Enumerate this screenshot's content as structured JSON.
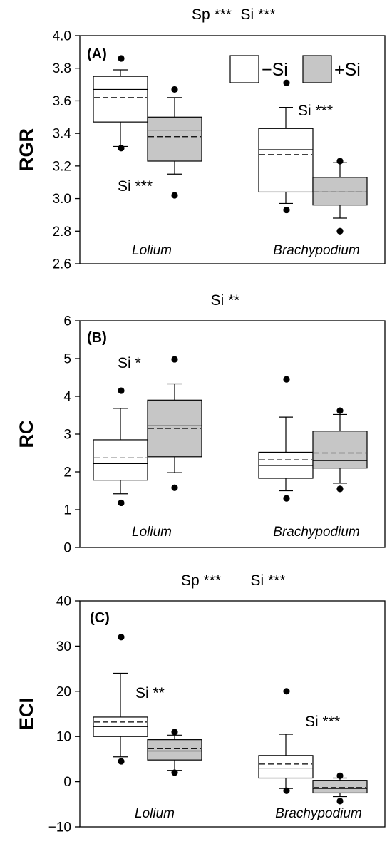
{
  "colors": {
    "minus_si": "#ffffff",
    "plus_si": "#c6c6c6",
    "outline": "#000000"
  },
  "legend": {
    "minus_label": "−Si",
    "plus_label": "+Si"
  },
  "chart_data": [
    {
      "type": "box",
      "panel_label": "(A)",
      "ylabel": "RGR",
      "ylim": [
        2.6,
        4.0
      ],
      "yticks": [
        "2.6",
        "2.8",
        "3.0",
        "3.2",
        "3.4",
        "3.6",
        "3.8",
        "4.0"
      ],
      "top_text": [
        "Sp ***",
        "Si ***"
      ],
      "categories": [
        "Lolium",
        "Brachypodium"
      ],
      "annotations": [
        "Si ***",
        "Si ***"
      ],
      "series": [
        {
          "group": "−Si",
          "boxes": [
            {
              "q1": 3.47,
              "median": 3.67,
              "q3": 3.75,
              "mean": 3.62,
              "wlow": 3.32,
              "whigh": 3.79,
              "outliers": [
                3.86,
                3.31
              ]
            },
            {
              "q1": 3.04,
              "median": 3.3,
              "q3": 3.43,
              "mean": 3.27,
              "wlow": 2.97,
              "whigh": 3.56,
              "outliers": [
                3.71,
                2.93
              ]
            }
          ]
        },
        {
          "group": "+Si",
          "boxes": [
            {
              "q1": 3.23,
              "median": 3.42,
              "q3": 3.5,
              "mean": 3.38,
              "wlow": 3.15,
              "whigh": 3.62,
              "outliers": [
                3.67,
                3.02
              ]
            },
            {
              "q1": 2.96,
              "median": 3.04,
              "q3": 3.13,
              "mean": 3.04,
              "wlow": 2.88,
              "whigh": 3.22,
              "outliers": [
                3.23,
                2.8
              ]
            }
          ]
        }
      ]
    },
    {
      "type": "box",
      "panel_label": "(B)",
      "ylabel": "RC",
      "ylim": [
        0,
        6
      ],
      "yticks": [
        "0",
        "1",
        "2",
        "3",
        "4",
        "5",
        "6"
      ],
      "top_text": [
        "Si **"
      ],
      "categories": [
        "Lolium",
        "Brachypodium"
      ],
      "annotations": [
        "Si *"
      ],
      "series": [
        {
          "group": "−Si",
          "boxes": [
            {
              "q1": 1.78,
              "median": 2.22,
              "q3": 2.85,
              "mean": 2.37,
              "wlow": 1.42,
              "whigh": 3.68,
              "outliers": [
                4.15,
                1.18
              ]
            },
            {
              "q1": 1.83,
              "median": 2.17,
              "q3": 2.52,
              "mean": 2.32,
              "wlow": 1.5,
              "whigh": 3.45,
              "outliers": [
                4.45,
                1.3
              ]
            }
          ]
        },
        {
          "group": "+Si",
          "boxes": [
            {
              "q1": 2.4,
              "median": 3.22,
              "q3": 3.9,
              "mean": 3.15,
              "wlow": 1.98,
              "whigh": 4.33,
              "outliers": [
                4.98,
                1.58
              ]
            },
            {
              "q1": 2.1,
              "median": 2.3,
              "q3": 3.08,
              "mean": 2.5,
              "wlow": 1.7,
              "whigh": 3.52,
              "outliers": [
                3.62,
                1.55
              ]
            }
          ]
        }
      ]
    },
    {
      "type": "box",
      "panel_label": "(C)",
      "ylabel": "ECI",
      "ylim": [
        -10,
        40
      ],
      "yticks": [
        "−10",
        "0",
        "10",
        "20",
        "30",
        "40"
      ],
      "top_text": [
        "Sp ***",
        "Si ***"
      ],
      "categories": [
        "Lolium",
        "Brachypodium"
      ],
      "annotations": [
        "Si **",
        "Si ***"
      ],
      "series": [
        {
          "group": "−Si",
          "boxes": [
            {
              "q1": 10,
              "median": 12.2,
              "q3": 14.3,
              "mean": 13.2,
              "wlow": 5.5,
              "whigh": 24,
              "outliers": [
                32,
                4.5
              ]
            },
            {
              "q1": 0.8,
              "median": 3,
              "q3": 5.8,
              "mean": 3.9,
              "wlow": -1.5,
              "whigh": 10.5,
              "outliers": [
                20,
                -2
              ]
            }
          ]
        },
        {
          "group": "+Si",
          "boxes": [
            {
              "q1": 4.8,
              "median": 6.8,
              "q3": 9.3,
              "mean": 7.3,
              "wlow": 2.5,
              "whigh": 10.3,
              "outliers": [
                11,
                2
              ]
            },
            {
              "q1": -2.5,
              "median": -1.5,
              "q3": 0.3,
              "mean": -1.3,
              "wlow": -3.3,
              "whigh": 0.8,
              "outliers": [
                1.3,
                -4.3
              ]
            }
          ]
        }
      ]
    }
  ]
}
